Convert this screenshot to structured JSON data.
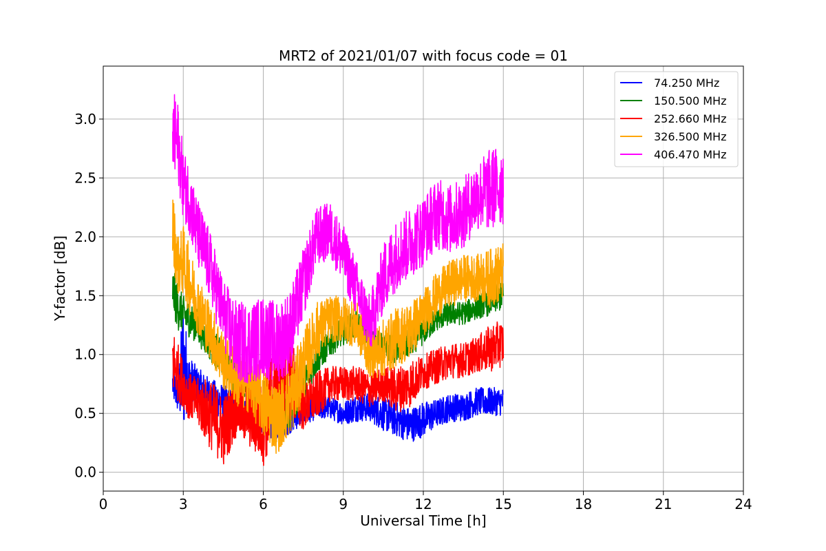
{
  "chart_data": {
    "type": "line",
    "title": "MRT2 of 2021/01/07 with focus code = 01",
    "xlabel": "Universal Time [h]",
    "ylabel": "Y-factor [dB]",
    "xlim": [
      0,
      24
    ],
    "ylim": [
      -0.16,
      3.45
    ],
    "xticks": [
      0,
      3,
      6,
      9,
      12,
      15,
      18,
      21,
      24
    ],
    "xtick_labels": [
      "0",
      "3",
      "6",
      "9",
      "12",
      "15",
      "18",
      "21",
      "24"
    ],
    "yticks": [
      0.0,
      0.5,
      1.0,
      1.5,
      2.0,
      2.5,
      3.0
    ],
    "ytick_labels": [
      "0.0",
      "0.5",
      "1.0",
      "1.5",
      "2.0",
      "2.5",
      "3.0"
    ],
    "grid": true,
    "legend_position": "top-right",
    "series": [
      {
        "name": " 74.250 MHz",
        "color": "#0000ff",
        "x": [
          2.6,
          2.8,
          3.0,
          3.2,
          3.5,
          4.0,
          4.5,
          5.0,
          5.5,
          6.0,
          6.5,
          7.0,
          7.5,
          8.0,
          8.5,
          9.0,
          9.5,
          10.0,
          10.5,
          11.0,
          11.5,
          12.0,
          12.5,
          13.0,
          13.5,
          14.0,
          14.5,
          15.0
        ],
        "y": [
          0.75,
          0.65,
          0.9,
          0.8,
          0.75,
          0.65,
          0.6,
          0.55,
          0.55,
          0.45,
          0.4,
          0.45,
          0.5,
          0.55,
          0.55,
          0.5,
          0.55,
          0.55,
          0.5,
          0.45,
          0.4,
          0.45,
          0.5,
          0.55,
          0.55,
          0.6,
          0.6,
          0.6
        ],
        "amplitude": [
          0.15,
          0.15,
          0.6,
          0.2,
          0.15,
          0.15,
          0.15,
          0.12,
          0.12,
          0.12,
          0.15,
          0.12,
          0.1,
          0.1,
          0.1,
          0.1,
          0.12,
          0.12,
          0.15,
          0.15,
          0.15,
          0.15,
          0.12,
          0.12,
          0.12,
          0.12,
          0.12,
          0.12
        ]
      },
      {
        "name": "150.500 MHz",
        "color": "#008000",
        "x": [
          2.6,
          2.8,
          3.0,
          3.2,
          3.5,
          4.0,
          4.5,
          5.0,
          5.5,
          6.0,
          6.5,
          7.0,
          7.5,
          8.0,
          8.5,
          9.0,
          9.5,
          10.0,
          10.5,
          11.0,
          11.5,
          12.0,
          12.5,
          13.0,
          13.5,
          14.0,
          14.5,
          15.0
        ],
        "y": [
          1.55,
          1.4,
          1.35,
          1.3,
          1.25,
          1.1,
          0.95,
          0.8,
          0.75,
          0.6,
          0.5,
          0.55,
          0.75,
          0.95,
          1.1,
          1.2,
          1.25,
          1.15,
          1.05,
          1.05,
          1.1,
          1.2,
          1.3,
          1.35,
          1.35,
          1.4,
          1.45,
          1.5
        ],
        "amplitude": [
          0.2,
          0.2,
          0.15,
          0.15,
          0.15,
          0.15,
          0.15,
          0.15,
          0.2,
          0.2,
          0.2,
          0.2,
          0.15,
          0.12,
          0.12,
          0.12,
          0.12,
          0.12,
          0.12,
          0.12,
          0.12,
          0.12,
          0.1,
          0.1,
          0.1,
          0.1,
          0.12,
          0.12
        ]
      },
      {
        "name": "252.660 MHz",
        "color": "#ff0000",
        "x": [
          2.6,
          2.8,
          3.0,
          3.2,
          3.5,
          4.0,
          4.5,
          5.0,
          5.5,
          6.0,
          6.5,
          7.0,
          7.5,
          8.0,
          8.5,
          9.0,
          9.5,
          10.0,
          10.5,
          11.0,
          11.5,
          12.0,
          12.5,
          13.0,
          13.5,
          14.0,
          14.5,
          15.0
        ],
        "y": [
          0.95,
          0.85,
          0.75,
          0.65,
          0.6,
          0.5,
          0.35,
          0.55,
          0.5,
          0.4,
          0.8,
          0.85,
          0.55,
          0.65,
          0.75,
          0.75,
          0.75,
          0.7,
          0.75,
          0.7,
          0.75,
          0.85,
          0.9,
          0.95,
          0.95,
          1.0,
          1.05,
          1.1
        ],
        "amplitude": [
          0.3,
          0.25,
          0.2,
          0.2,
          0.2,
          0.3,
          0.3,
          0.25,
          0.3,
          0.35,
          0.5,
          0.4,
          0.2,
          0.2,
          0.15,
          0.15,
          0.15,
          0.15,
          0.15,
          0.2,
          0.2,
          0.15,
          0.15,
          0.15,
          0.15,
          0.15,
          0.2,
          0.2
        ]
      },
      {
        "name": "326.500 MHz",
        "color": "#ffa500",
        "x": [
          2.6,
          2.8,
          3.0,
          3.2,
          3.5,
          4.0,
          4.5,
          5.0,
          5.5,
          6.0,
          6.5,
          7.0,
          7.5,
          8.0,
          8.5,
          9.0,
          9.5,
          10.0,
          10.5,
          11.0,
          11.5,
          12.0,
          12.5,
          13.0,
          13.5,
          14.0,
          14.5,
          15.0
        ],
        "y": [
          2.1,
          1.75,
          1.8,
          1.65,
          1.45,
          1.2,
          0.95,
          0.8,
          0.75,
          0.6,
          0.45,
          0.6,
          0.9,
          1.2,
          1.3,
          1.3,
          1.25,
          1.0,
          1.05,
          1.15,
          1.2,
          1.35,
          1.5,
          1.6,
          1.65,
          1.65,
          1.65,
          1.7
        ],
        "amplitude": [
          0.3,
          0.25,
          0.3,
          0.3,
          0.25,
          0.25,
          0.25,
          0.25,
          0.25,
          0.3,
          0.3,
          0.3,
          0.3,
          0.25,
          0.2,
          0.2,
          0.2,
          0.2,
          0.25,
          0.25,
          0.25,
          0.2,
          0.2,
          0.2,
          0.2,
          0.2,
          0.25,
          0.25
        ]
      },
      {
        "name": "406.470 MHz",
        "color": "#ff00ff",
        "x": [
          2.6,
          2.8,
          3.0,
          3.2,
          3.5,
          4.0,
          4.5,
          5.0,
          5.5,
          6.0,
          6.5,
          7.0,
          7.5,
          8.0,
          8.5,
          9.0,
          9.5,
          10.0,
          10.5,
          11.0,
          11.5,
          12.0,
          12.5,
          13.0,
          13.5,
          14.0,
          14.5,
          15.0
        ],
        "y": [
          2.85,
          2.8,
          2.45,
          2.35,
          2.05,
          1.75,
          1.35,
          1.1,
          1.1,
          1.15,
          1.1,
          1.2,
          1.6,
          2.0,
          2.05,
          1.85,
          1.55,
          1.25,
          1.65,
          1.85,
          1.95,
          2.05,
          2.2,
          2.15,
          2.2,
          2.35,
          2.4,
          2.45
        ],
        "amplitude": [
          0.4,
          0.35,
          0.3,
          0.3,
          0.3,
          0.3,
          0.3,
          0.35,
          0.35,
          0.35,
          0.35,
          0.35,
          0.3,
          0.25,
          0.25,
          0.25,
          0.25,
          0.25,
          0.3,
          0.3,
          0.3,
          0.3,
          0.3,
          0.3,
          0.3,
          0.3,
          0.35,
          0.35
        ]
      }
    ]
  }
}
